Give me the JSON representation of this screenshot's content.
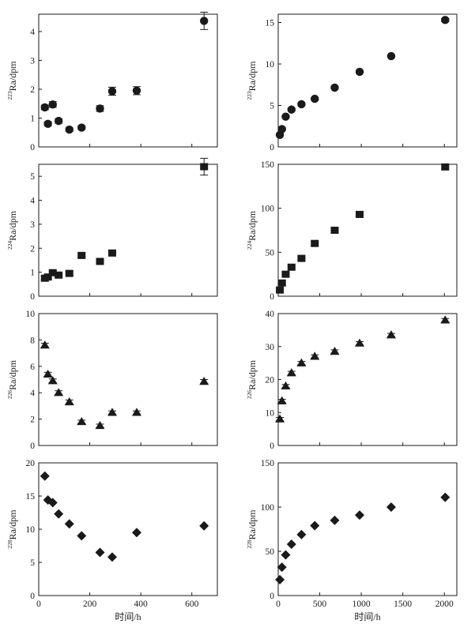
{
  "figure": {
    "xlabel": "时间/h"
  },
  "chart_data": [
    {
      "id": "ra223-short",
      "type": "scatter",
      "marker": "circle",
      "ylabel_sup": "223",
      "ylabel_main": "Ra/dpm",
      "xlabel": "",
      "xlim": [
        0,
        700
      ],
      "ylim": [
        0,
        4.6
      ],
      "xticks": [
        "0",
        "200",
        "400",
        "600"
      ],
      "xtick_values": [
        0,
        200,
        400,
        600
      ],
      "yticks": [
        "0",
        "1",
        "2",
        "3",
        "4"
      ],
      "ytick_values": [
        0,
        1,
        2,
        3,
        4
      ],
      "show_xtick_labels": false,
      "points": [
        {
          "x": 24,
          "y": 1.37,
          "err": 0.08
        },
        {
          "x": 36,
          "y": 0.8,
          "err": 0.07
        },
        {
          "x": 55,
          "y": 1.47,
          "err": 0.1
        },
        {
          "x": 78,
          "y": 0.9,
          "err": 0.08
        },
        {
          "x": 120,
          "y": 0.6,
          "err": 0.06
        },
        {
          "x": 168,
          "y": 0.67,
          "err": 0.06
        },
        {
          "x": 240,
          "y": 1.33,
          "err": 0.1
        },
        {
          "x": 288,
          "y": 1.93,
          "err": 0.14
        },
        {
          "x": 384,
          "y": 1.95,
          "err": 0.14
        },
        {
          "x": 648,
          "y": 4.37,
          "err": 0.3
        }
      ]
    },
    {
      "id": "ra223-long",
      "type": "scatter",
      "marker": "circle",
      "ylabel_sup": "223",
      "ylabel_main": "Ra/dpm",
      "xlabel": "",
      "xlim": [
        0,
        2150
      ],
      "ylim": [
        0,
        16
      ],
      "xticks": [
        "0",
        "500",
        "1000",
        "1500",
        "2000"
      ],
      "xtick_values": [
        0,
        500,
        1000,
        1500,
        2000
      ],
      "yticks": [
        "0",
        "5",
        "10",
        "15"
      ],
      "ytick_values": [
        0,
        5,
        10,
        15
      ],
      "show_xtick_labels": false,
      "points": [
        {
          "x": 20,
          "y": 1.45,
          "err": 0.15
        },
        {
          "x": 45,
          "y": 2.15,
          "err": 0.15
        },
        {
          "x": 90,
          "y": 3.65,
          "err": 0.15
        },
        {
          "x": 160,
          "y": 4.5,
          "err": 0.15
        },
        {
          "x": 280,
          "y": 5.15,
          "err": 0.15
        },
        {
          "x": 440,
          "y": 5.8,
          "err": 0.15
        },
        {
          "x": 680,
          "y": 7.15,
          "err": 0.15
        },
        {
          "x": 980,
          "y": 9.05,
          "err": 0.15
        },
        {
          "x": 1360,
          "y": 10.95,
          "err": 0.15
        },
        {
          "x": 2010,
          "y": 15.3,
          "err": 0.2
        }
      ]
    },
    {
      "id": "ra224-short",
      "type": "scatter",
      "marker": "square",
      "ylabel_sup": "224",
      "ylabel_main": "Ra/dpm",
      "xlabel": "",
      "xlim": [
        0,
        700
      ],
      "ylim": [
        0,
        5.5
      ],
      "xticks": [
        "0",
        "200",
        "400",
        "600"
      ],
      "xtick_values": [
        0,
        200,
        400,
        600
      ],
      "yticks": [
        "0",
        "1",
        "2",
        "3",
        "4",
        "5"
      ],
      "ytick_values": [
        0,
        1,
        2,
        3,
        4,
        5
      ],
      "show_xtick_labels": false,
      "points": [
        {
          "x": 24,
          "y": 0.75,
          "err": 0.08
        },
        {
          "x": 36,
          "y": 0.8,
          "err": 0.08
        },
        {
          "x": 55,
          "y": 0.98,
          "err": 0.08
        },
        {
          "x": 78,
          "y": 0.88,
          "err": 0.08
        },
        {
          "x": 120,
          "y": 0.95,
          "err": 0.08
        },
        {
          "x": 168,
          "y": 1.7,
          "err": 0.1
        },
        {
          "x": 240,
          "y": 1.45,
          "err": 0.1
        },
        {
          "x": 288,
          "y": 1.8,
          "err": 0.12
        },
        {
          "x": 648,
          "y": 5.4,
          "err": 0.35
        }
      ]
    },
    {
      "id": "ra224-long",
      "type": "scatter",
      "marker": "square",
      "ylabel_sup": "224",
      "ylabel_main": "Ra/dpm",
      "xlabel": "",
      "xlim": [
        0,
        2150
      ],
      "ylim": [
        0,
        150
      ],
      "xticks": [
        "0",
        "500",
        "1000",
        "1500",
        "2000"
      ],
      "xtick_values": [
        0,
        500,
        1000,
        1500,
        2000
      ],
      "yticks": [
        "0",
        "50",
        "100",
        "150"
      ],
      "ytick_values": [
        0,
        50,
        100,
        150
      ],
      "show_xtick_labels": false,
      "points": [
        {
          "x": 20,
          "y": 7,
          "err": 2
        },
        {
          "x": 45,
          "y": 15,
          "err": 2
        },
        {
          "x": 90,
          "y": 25,
          "err": 2
        },
        {
          "x": 160,
          "y": 33,
          "err": 2
        },
        {
          "x": 280,
          "y": 43,
          "err": 2
        },
        {
          "x": 440,
          "y": 60,
          "err": 2.5
        },
        {
          "x": 680,
          "y": 75,
          "err": 2.5
        },
        {
          "x": 980,
          "y": 93,
          "err": 2.5
        },
        {
          "x": 2010,
          "y": 147,
          "err": 3
        }
      ]
    },
    {
      "id": "ra226-short",
      "type": "scatter",
      "marker": "triangle",
      "ylabel_sup": "226",
      "ylabel_main": "Ra/dpm",
      "xlabel": "",
      "xlim": [
        0,
        700
      ],
      "ylim": [
        0,
        10
      ],
      "xticks": [
        "0",
        "200",
        "400",
        "600"
      ],
      "xtick_values": [
        0,
        200,
        400,
        600
      ],
      "yticks": [
        "0",
        "2",
        "4",
        "6",
        "8",
        "10"
      ],
      "ytick_values": [
        0,
        2,
        4,
        6,
        8,
        10
      ],
      "show_xtick_labels": false,
      "points": [
        {
          "x": 24,
          "y": 7.6,
          "err": 0.15
        },
        {
          "x": 36,
          "y": 5.4,
          "err": 0.15
        },
        {
          "x": 55,
          "y": 4.9,
          "err": 0.15
        },
        {
          "x": 78,
          "y": 4.0,
          "err": 0.15
        },
        {
          "x": 120,
          "y": 3.3,
          "err": 0.15
        },
        {
          "x": 168,
          "y": 1.8,
          "err": 0.12
        },
        {
          "x": 240,
          "y": 1.5,
          "err": 0.12
        },
        {
          "x": 288,
          "y": 2.5,
          "err": 0.12
        },
        {
          "x": 384,
          "y": 2.5,
          "err": 0.12
        },
        {
          "x": 648,
          "y": 4.85,
          "err": 0.15
        }
      ]
    },
    {
      "id": "ra226-long",
      "type": "scatter",
      "marker": "triangle",
      "ylabel_sup": "226",
      "ylabel_main": "Ra/dpm",
      "xlabel": "",
      "xlim": [
        0,
        2150
      ],
      "ylim": [
        0,
        40
      ],
      "xticks": [
        "0",
        "500",
        "1000",
        "1500",
        "2000"
      ],
      "xtick_values": [
        0,
        500,
        1000,
        1500,
        2000
      ],
      "yticks": [
        "0",
        "10",
        "20",
        "30",
        "40"
      ],
      "ytick_values": [
        0,
        10,
        20,
        30,
        40
      ],
      "show_xtick_labels": false,
      "points": [
        {
          "x": 20,
          "y": 8,
          "err": 0.5
        },
        {
          "x": 45,
          "y": 13.5,
          "err": 0.5
        },
        {
          "x": 90,
          "y": 18,
          "err": 0.5
        },
        {
          "x": 160,
          "y": 22,
          "err": 0.5
        },
        {
          "x": 280,
          "y": 25,
          "err": 0.5
        },
        {
          "x": 440,
          "y": 27,
          "err": 0.5
        },
        {
          "x": 680,
          "y": 28.5,
          "err": 0.5
        },
        {
          "x": 980,
          "y": 31,
          "err": 0.5
        },
        {
          "x": 1360,
          "y": 33.5,
          "err": 0.5
        },
        {
          "x": 2010,
          "y": 38,
          "err": 0.5
        }
      ]
    },
    {
      "id": "ra228-short",
      "type": "scatter",
      "marker": "diamond",
      "ylabel_sup": "228",
      "ylabel_main": "Ra/dpm",
      "xlabel": "时间/h",
      "xlim": [
        0,
        700
      ],
      "ylim": [
        0,
        20
      ],
      "xticks": [
        "0",
        "200",
        "400",
        "600"
      ],
      "xtick_values": [
        0,
        200,
        400,
        600
      ],
      "yticks": [
        "0",
        "5",
        "10",
        "15",
        "20"
      ],
      "ytick_values": [
        0,
        5,
        10,
        15,
        20
      ],
      "show_xtick_labels": true,
      "points": [
        {
          "x": 24,
          "y": 18.0
        },
        {
          "x": 36,
          "y": 14.4
        },
        {
          "x": 55,
          "y": 14.0
        },
        {
          "x": 78,
          "y": 12.3
        },
        {
          "x": 120,
          "y": 10.8
        },
        {
          "x": 168,
          "y": 9.0
        },
        {
          "x": 240,
          "y": 6.5
        },
        {
          "x": 288,
          "y": 5.8
        },
        {
          "x": 384,
          "y": 9.5
        },
        {
          "x": 648,
          "y": 10.5
        }
      ]
    },
    {
      "id": "ra228-long",
      "type": "scatter",
      "marker": "diamond",
      "ylabel_sup": "228",
      "ylabel_main": "Ra/dpm",
      "xlabel": "时间/h",
      "xlim": [
        0,
        2150
      ],
      "ylim": [
        0,
        150
      ],
      "xticks": [
        "0",
        "500",
        "1000",
        "1500",
        "2000"
      ],
      "xtick_values": [
        0,
        500,
        1000,
        1500,
        2000
      ],
      "yticks": [
        "0",
        "50",
        "100",
        "150"
      ],
      "ytick_values": [
        0,
        50,
        100,
        150
      ],
      "show_xtick_labels": true,
      "points": [
        {
          "x": 20,
          "y": 18
        },
        {
          "x": 45,
          "y": 32
        },
        {
          "x": 90,
          "y": 46
        },
        {
          "x": 160,
          "y": 58
        },
        {
          "x": 280,
          "y": 69
        },
        {
          "x": 440,
          "y": 79
        },
        {
          "x": 680,
          "y": 85
        },
        {
          "x": 980,
          "y": 91
        },
        {
          "x": 1360,
          "y": 100
        },
        {
          "x": 2010,
          "y": 111
        }
      ]
    }
  ]
}
